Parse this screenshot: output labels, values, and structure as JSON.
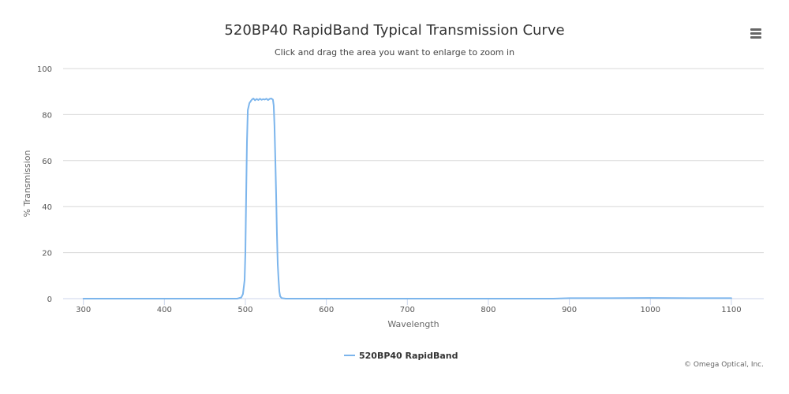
{
  "header": {
    "title": "520BP40 RapidBand Typical Transmission Curve",
    "subtitle": "Click and drag the area you want to enlarge to zoom in",
    "menu_icon": "hamburger-menu-icon"
  },
  "credits": "© Omega Optical, Inc.",
  "colors": {
    "series": "#7cb5ec",
    "grid": "#d8d8d8",
    "axis": "#ccd6eb"
  },
  "chart_data": {
    "type": "line",
    "title": "520BP40 RapidBand Typical Transmission Curve",
    "subtitle": "Click and drag the area you want to enlarge to zoom in",
    "xlabel": "Wavelength",
    "ylabel": "% Transmission",
    "xlim": [
      275,
      1140
    ],
    "ylim": [
      0,
      100
    ],
    "x_ticks": [
      300,
      400,
      500,
      600,
      700,
      800,
      900,
      1000,
      1100
    ],
    "y_ticks": [
      0,
      20,
      40,
      60,
      80,
      100
    ],
    "grid": "horizontal",
    "legend_position": "bottom-center",
    "series": [
      {
        "name": "520BP40 RapidBand",
        "color": "#7cb5ec",
        "x": [
          300,
          400,
          480,
          490,
          495,
          497,
          499,
          500,
          501,
          502,
          503,
          505,
          508,
          510,
          512,
          514,
          516,
          518,
          520,
          522,
          524,
          526,
          528,
          530,
          532,
          534,
          535,
          536,
          537,
          538,
          539,
          540,
          541,
          542,
          543,
          545,
          550,
          560,
          600,
          700,
          800,
          880,
          900,
          950,
          1000,
          1050,
          1100
        ],
        "y": [
          0,
          0,
          0,
          0,
          0.5,
          2,
          8,
          20,
          45,
          68,
          82,
          85,
          86.5,
          87,
          86.2,
          86.8,
          86.3,
          86.9,
          86.4,
          86.7,
          86.5,
          86.9,
          86.3,
          86.8,
          87,
          86.5,
          84,
          75,
          60,
          45,
          28,
          15,
          8,
          3,
          1,
          0.2,
          0,
          0,
          0,
          0,
          0,
          0,
          0.2,
          0.2,
          0.3,
          0.2,
          0.2
        ]
      }
    ]
  }
}
